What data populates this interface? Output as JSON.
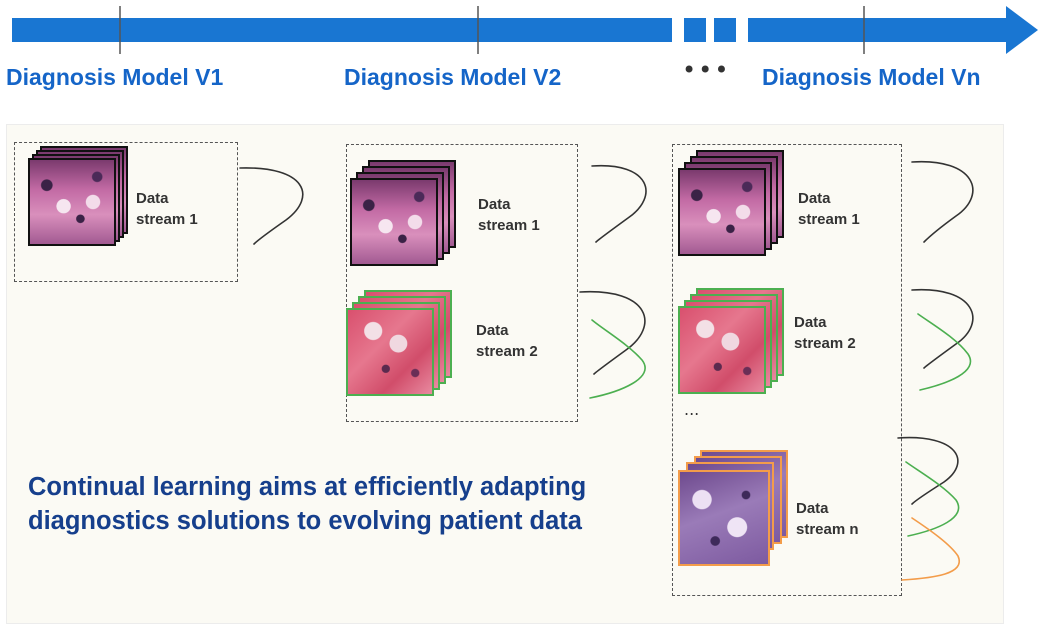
{
  "timeline": {
    "color": "#1976d2",
    "labels": [
      "Diagnosis Model V1",
      "Diagnosis Model V2",
      "Diagnosis Model Vn"
    ],
    "gap_dots": "•••"
  },
  "stages": [
    {
      "streams": [
        {
          "label_line1": "Data",
          "label_line2": "stream 1",
          "border": "#111111"
        }
      ]
    },
    {
      "streams": [
        {
          "label_line1": "Data",
          "label_line2": "stream 1",
          "border": "#111111"
        },
        {
          "label_line1": "Data",
          "label_line2": "stream 2",
          "border": "#4caf50"
        }
      ]
    },
    {
      "streams": [
        {
          "label_line1": "Data",
          "label_line2": "stream 1",
          "border": "#111111"
        },
        {
          "label_line1": "Data",
          "label_line2": "stream 2",
          "border": "#4caf50"
        },
        {
          "label_line1": "Data",
          "label_line2": "stream n",
          "border": "#f39c4a"
        }
      ],
      "ellipsis": "..."
    }
  ],
  "caption": "Continual learning aims at efficiently adapting diagnostics solutions to evolving patient data",
  "colors": {
    "caption": "#163f8c",
    "label": "#1565c8",
    "curve_black": "#333333",
    "curve_green": "#4caf50",
    "curve_orange": "#f39c4a"
  },
  "icons": [
    "arrow-timeline",
    "histology-image-stack",
    "distribution-curve-icon"
  ]
}
